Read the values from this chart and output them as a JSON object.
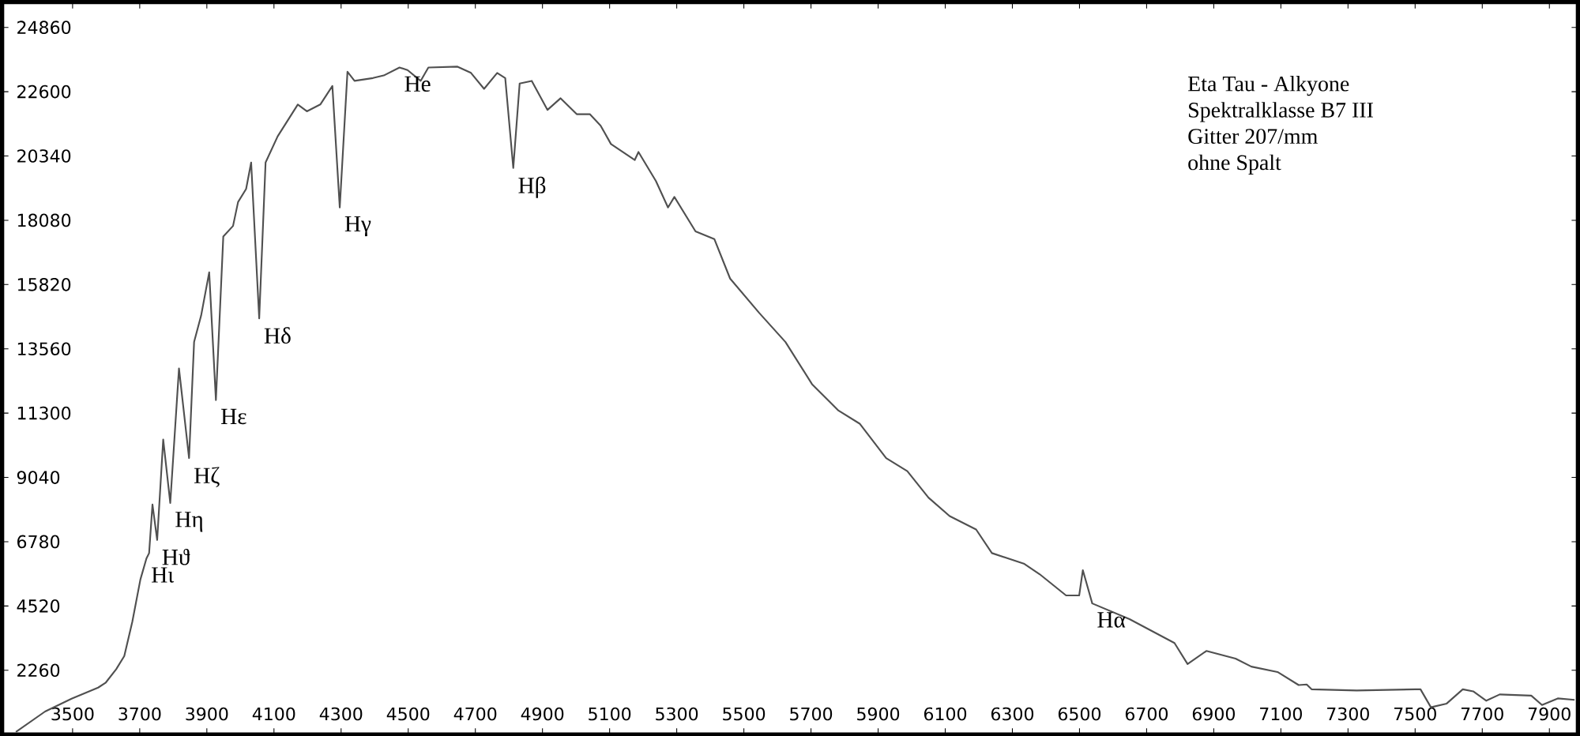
{
  "chart_data": {
    "type": "line",
    "x": [
      3331,
      3418,
      3497,
      3576,
      3599,
      3630,
      3654,
      3678,
      3702,
      3720,
      3728,
      3738,
      3752,
      3770,
      3791,
      3817,
      3847,
      3862,
      3883,
      3907,
      3927,
      3949,
      3978,
      3993,
      4017,
      4032,
      4056,
      4075,
      4111,
      4171,
      4198,
      4238,
      4274,
      4296,
      4319,
      4340,
      4395,
      4427,
      4474,
      4498,
      4537,
      4560,
      4647,
      4687,
      4726,
      4765,
      4789,
      4813,
      4832,
      4868,
      4915,
      4954,
      5002,
      5041,
      5073,
      5104,
      5175,
      5186,
      5238,
      5274,
      5293,
      5356,
      5412,
      5459,
      5546,
      5624,
      5703,
      5782,
      5845,
      5924,
      5987,
      6050,
      6113,
      6192,
      6239,
      6334,
      6381,
      6460,
      6499,
      6510,
      6538,
      6649,
      6783,
      6822,
      6878,
      6965,
      7012,
      7090,
      7153,
      7177,
      7192,
      7326,
      7500,
      7516,
      7547,
      7594,
      7642,
      7673,
      7712,
      7752,
      7846,
      7878,
      7925,
      7975
    ],
    "series": [
      {
        "color": "#505050",
        "values": [
          90,
          810,
          1260,
          1650,
          1830,
          2300,
          2760,
          3970,
          5450,
          6190,
          6380,
          8090,
          6840,
          10370,
          8140,
          12870,
          9720,
          13800,
          14730,
          16250,
          11760,
          17510,
          17880,
          18720,
          19180,
          20110,
          14630,
          20110,
          21030,
          22150,
          21910,
          22150,
          22800,
          18530,
          23300,
          22980,
          23080,
          23170,
          23450,
          23360,
          22980,
          23450,
          23480,
          23260,
          22700,
          23260,
          23080,
          19920,
          22890,
          22980,
          21960,
          22370,
          21810,
          21810,
          21410,
          20760,
          20200,
          20480,
          19460,
          18530,
          18900,
          17690,
          17420,
          16030,
          14820,
          13800,
          12320,
          11390,
          10930,
          9720,
          9260,
          8330,
          7680,
          7210,
          6380,
          6010,
          5640,
          4890,
          4890,
          5780,
          4610,
          4060,
          3220,
          2480,
          2940,
          2670,
          2390,
          2200,
          1740,
          1760,
          1590,
          1550,
          1590,
          1590,
          960,
          1090,
          1590,
          1520,
          1190,
          1410,
          1370,
          1040,
          1270,
          1220
        ]
      }
    ],
    "xlim": [
      3290,
      7985
    ],
    "ylim": [
      0,
      25750
    ],
    "xticks": [
      3500,
      3700,
      3900,
      4100,
      4300,
      4500,
      4700,
      4900,
      5100,
      5300,
      5500,
      5700,
      5900,
      6100,
      6300,
      6500,
      6700,
      6900,
      7100,
      7300,
      7500,
      7700,
      7900
    ],
    "yticks": [
      2260,
      4520,
      6780,
      9040,
      11300,
      13560,
      15820,
      18080,
      20340,
      22600,
      24860
    ],
    "annotations": [
      "Eta Tau - Alkyone",
      "Spektralklasse B7 III",
      "Gitter 207/mm",
      "ohne Spalt",
      {
        "text": "Hι",
        "x": 3720,
        "y": 6190
      },
      {
        "text": "Hϑ",
        "x": 3752,
        "y": 6840
      },
      {
        "text": "Hη",
        "x": 3791,
        "y": 8140
      },
      {
        "text": "Hζ",
        "x": 3847,
        "y": 9720
      },
      {
        "text": "Hε",
        "x": 3927,
        "y": 11760
      },
      {
        "text": "Hδ",
        "x": 4056,
        "y": 14630
      },
      {
        "text": "Hγ",
        "x": 4296,
        "y": 18530
      },
      {
        "text": "He",
        "x": 4474,
        "y": 23450
      },
      {
        "text": "Hβ",
        "x": 4813,
        "y": 19920
      },
      {
        "text": "Hα",
        "x": 6538,
        "y": 4610
      }
    ]
  }
}
